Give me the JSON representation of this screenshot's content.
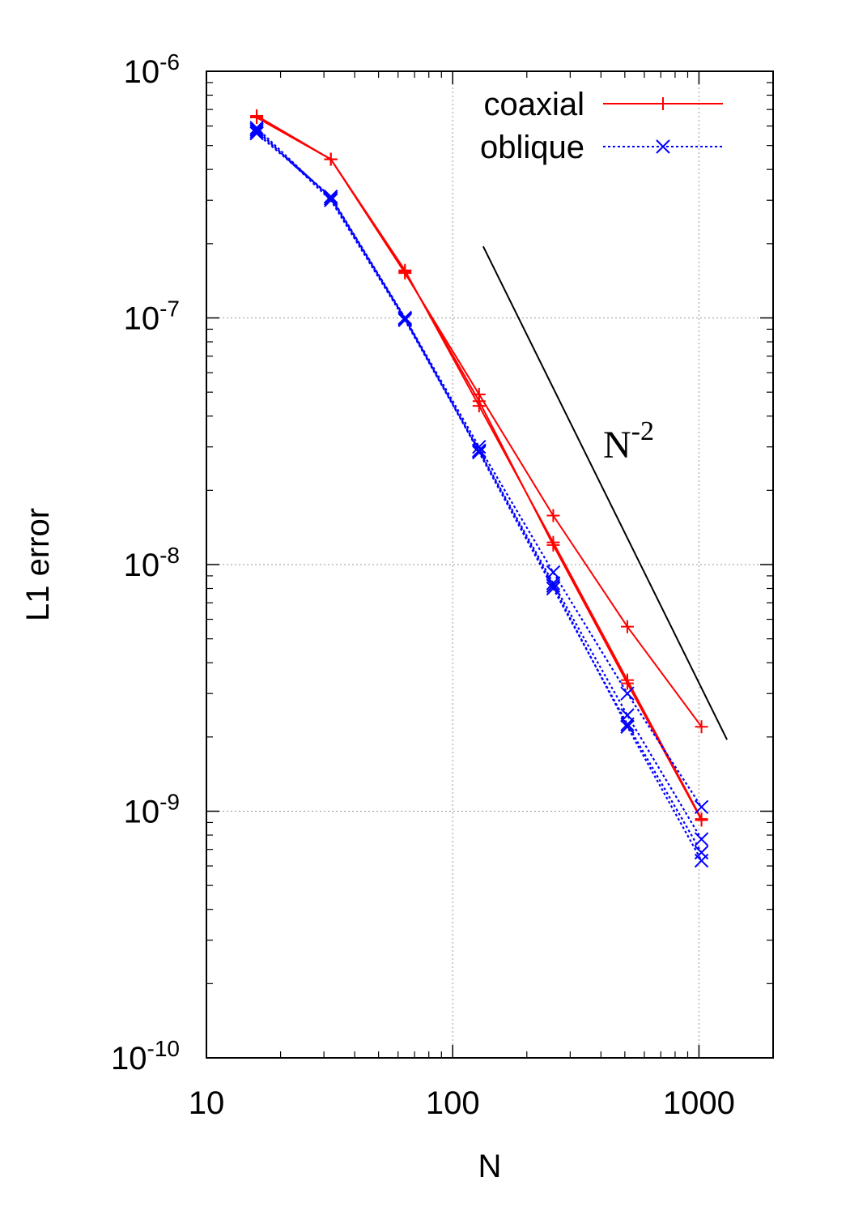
{
  "chart_data": {
    "type": "line",
    "xlabel": "N",
    "ylabel": "L1 error",
    "x_scale": "log",
    "y_scale": "log",
    "xlim": [
      10,
      2000
    ],
    "ylim": [
      1e-10,
      1e-06
    ],
    "grid": true,
    "legend_position": "top-right",
    "x_ticks": [
      {
        "value": 10,
        "label": "10"
      },
      {
        "value": 100,
        "label": "100"
      },
      {
        "value": 1000,
        "label": "1000"
      }
    ],
    "y_ticks": [
      {
        "value": 1e-10,
        "base": "10",
        "exp": "-10"
      },
      {
        "value": 1e-09,
        "base": "10",
        "exp": "-9"
      },
      {
        "value": 1e-08,
        "base": "10",
        "exp": "-8"
      },
      {
        "value": 1e-07,
        "base": "10",
        "exp": "-7"
      },
      {
        "value": 1e-06,
        "base": "10",
        "exp": "-6"
      }
    ],
    "series": [
      {
        "name": "coaxial",
        "color": "#ff0000",
        "marker": "plus",
        "dash": "solid",
        "x": [
          16,
          32,
          64,
          128,
          256,
          512,
          1024
        ],
        "y": [
          6.6e-07,
          4.4e-07,
          1.56e-07,
          4.4e-08,
          1.23e-08,
          3.4e-09,
          9.3e-10
        ]
      },
      {
        "color": "#ff0000",
        "marker": "plus",
        "dash": "solid",
        "x": [
          16,
          32,
          64,
          128,
          256,
          512,
          1024
        ],
        "y": [
          6.5e-07,
          4.4e-07,
          1.52e-07,
          4.9e-08,
          1.58e-08,
          5.6e-09,
          2.2e-09
        ]
      },
      {
        "color": "#ff0000",
        "marker": "plus",
        "dash": "solid",
        "x": [
          16,
          32,
          64,
          128,
          256,
          512,
          1024
        ],
        "y": [
          6.5e-07,
          4.4e-07,
          1.54e-07,
          4.6e-08,
          1.2e-08,
          3.3e-09,
          9.2e-10
        ]
      },
      {
        "name": "oblique",
        "color": "#0000ff",
        "marker": "cross",
        "dash": "dotted",
        "x": [
          16,
          32,
          64,
          128,
          256,
          512,
          1024
        ],
        "y": [
          5.6e-07,
          3.1e-07,
          1e-07,
          3e-08,
          9.3e-09,
          3e-09,
          1.04e-09
        ]
      },
      {
        "color": "#0000ff",
        "marker": "cross",
        "dash": "dotted",
        "x": [
          16,
          32,
          64,
          128,
          256,
          512,
          1024
        ],
        "y": [
          5.9e-07,
          3.05e-07,
          9.9e-08,
          2.9e-08,
          8.4e-09,
          2.45e-09,
          7.7e-10
        ]
      },
      {
        "color": "#0000ff",
        "marker": "cross",
        "dash": "dotted",
        "x": [
          16,
          32,
          64,
          128,
          256,
          512,
          1024
        ],
        "y": [
          5.7e-07,
          3.1e-07,
          1e-07,
          2.85e-08,
          8e-09,
          2.25e-09,
          6.8e-10
        ]
      },
      {
        "color": "#0000ff",
        "marker": "cross",
        "dash": "dotted",
        "x": [
          16,
          32,
          64,
          128,
          256,
          512,
          1024
        ],
        "y": [
          5.8e-07,
          3e-07,
          9.8e-08,
          2.88e-08,
          8.2e-09,
          2.2e-09,
          6.3e-10
        ]
      }
    ],
    "reference_line": {
      "label_base": "N",
      "label_exp": "-2",
      "color": "#000000",
      "x": [
        133,
        1300
      ],
      "y": [
        1.95e-07,
        1.95e-09
      ]
    }
  }
}
